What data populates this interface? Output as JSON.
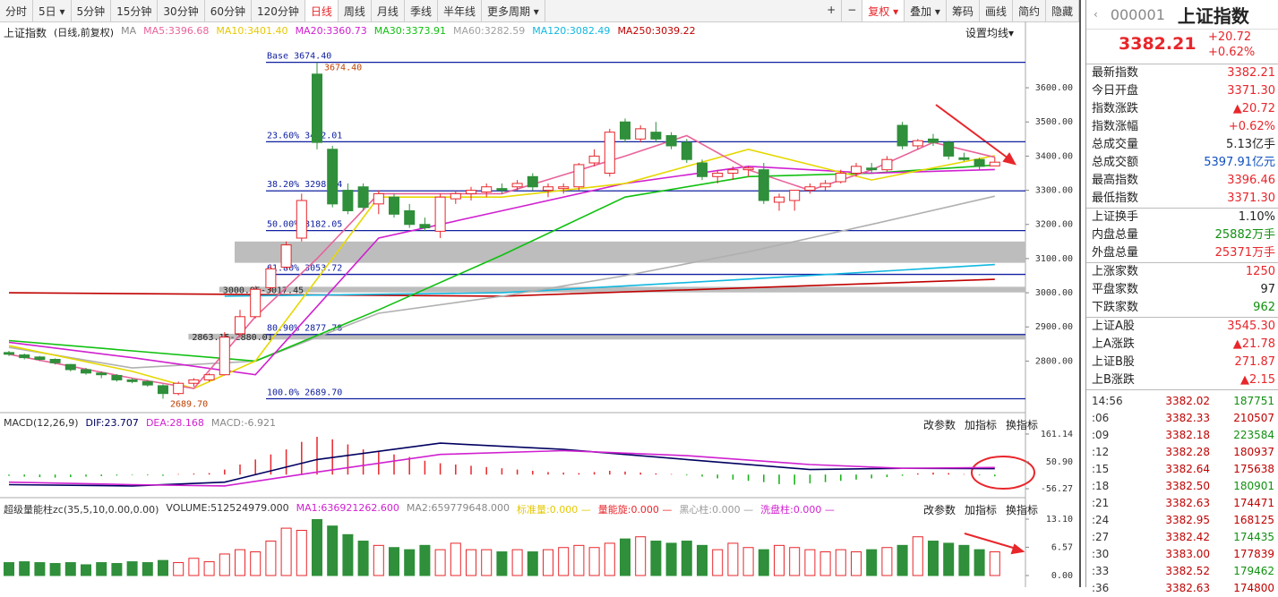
{
  "toolbar": {
    "tabs": [
      "分时",
      "5日 ▾",
      "5分钟",
      "15分钟",
      "30分钟",
      "60分钟",
      "120分钟",
      "日线",
      "周线",
      "月线",
      "季线",
      "半年线",
      "更多周期 ▾"
    ],
    "active": 7,
    "tools": [
      "+",
      "−",
      "复权 ▾",
      "叠加 ▾",
      "筹码",
      "画线",
      "简约",
      "隐藏"
    ],
    "active_tool": 2
  },
  "chart_data": [
    {
      "type": "candlestick",
      "title": "上证指数",
      "subtitle": "(日线,前复权)",
      "ma_label": "MA",
      "settings_label": "设置均线▾",
      "legend": [
        {
          "text": "MA5:3396.68",
          "color": "#e8639a"
        },
        {
          "text": "MA10:3401.40",
          "color": "#e6c800"
        },
        {
          "text": "MA20:3360.73",
          "color": "#d020d0"
        },
        {
          "text": "MA30:3373.91",
          "color": "#10c010"
        },
        {
          "text": "MA60:3282.59",
          "color": "#a0a0a0"
        },
        {
          "text": "MA120:3082.49",
          "color": "#10b8e0"
        },
        {
          "text": "MA250:3039.22",
          "color": "#c00000"
        }
      ],
      "open": [
        2825,
        2818,
        2812,
        2805,
        2790,
        2775,
        2765,
        2758,
        2745,
        2740,
        2728,
        2705,
        2735,
        2745,
        2760,
        2880,
        2930,
        3015,
        3075,
        3160,
        3640,
        3420,
        3300,
        3310,
        3260,
        3280,
        3240,
        3200,
        3180,
        3275,
        3290,
        3295,
        3305,
        3310,
        3340,
        3300,
        3305,
        3310,
        3380,
        3350,
        3500,
        3450,
        3470,
        3460,
        3440,
        3380,
        3340,
        3350,
        3360,
        3360,
        3265,
        3270,
        3300,
        3310,
        3325,
        3350,
        3365,
        3360,
        3490,
        3430,
        3450,
        3440,
        3395,
        3390,
        3371.3
      ],
      "high": [
        2830,
        2822,
        2815,
        2808,
        2792,
        2780,
        2770,
        2762,
        2750,
        2745,
        2732,
        2740,
        2750,
        2765,
        2885,
        2950,
        3020,
        3080,
        3150,
        3290,
        3674.4,
        3430,
        3320,
        3320,
        3300,
        3290,
        3260,
        3220,
        3290,
        3300,
        3310,
        3320,
        3320,
        3330,
        3350,
        3320,
        3320,
        3380,
        3420,
        3480,
        3510,
        3490,
        3500,
        3470,
        3450,
        3390,
        3360,
        3370,
        3370,
        3380,
        3290,
        3300,
        3320,
        3330,
        3360,
        3380,
        3380,
        3400,
        3500,
        3450,
        3465,
        3445,
        3410,
        3395,
        3396.46
      ],
      "low": [
        2815,
        2805,
        2800,
        2790,
        2770,
        2760,
        2750,
        2740,
        2735,
        2725,
        2689.7,
        2700,
        2725,
        2740,
        2758,
        2870,
        2925,
        3005,
        3070,
        3150,
        3420,
        3250,
        3230,
        3240,
        3230,
        3220,
        3190,
        3180,
        3160,
        3260,
        3270,
        3280,
        3290,
        3300,
        3300,
        3280,
        3290,
        3300,
        3370,
        3340,
        3440,
        3440,
        3440,
        3420,
        3380,
        3330,
        3320,
        3330,
        3340,
        3260,
        3240,
        3240,
        3290,
        3300,
        3320,
        3340,
        3350,
        3355,
        3420,
        3420,
        3430,
        3390,
        3385,
        3360,
        3371.3
      ],
      "close": [
        2820,
        2810,
        2805,
        2795,
        2775,
        2765,
        2760,
        2745,
        2740,
        2730,
        2705,
        2735,
        2745,
        2760,
        2870,
        2930,
        3010,
        3070,
        3140,
        3270,
        3440,
        3260,
        3240,
        3250,
        3290,
        3230,
        3200,
        3190,
        3280,
        3290,
        3300,
        3310,
        3300,
        3320,
        3310,
        3310,
        3310,
        3375,
        3400,
        3470,
        3450,
        3480,
        3450,
        3430,
        3390,
        3340,
        3350,
        3360,
        3365,
        3270,
        3280,
        3300,
        3310,
        3320,
        3350,
        3370,
        3360,
        3390,
        3430,
        3445,
        3440,
        3400,
        3390,
        3370,
        3382.21
      ],
      "up_color": "#e8262b",
      "down_color": "#2f8f3a",
      "ylim": [
        2657,
        3739
      ],
      "yticks": [
        {
          "value": 3600,
          "label": "3600.00"
        },
        {
          "value": 3500,
          "label": "3500.00"
        },
        {
          "value": 3400,
          "label": "3400.00"
        },
        {
          "value": 3300,
          "label": "3300.00"
        },
        {
          "value": 3200,
          "label": "3200.00"
        },
        {
          "value": 3100,
          "label": "3100.00"
        },
        {
          "value": 3000,
          "label": "3000.00"
        },
        {
          "value": 2900,
          "label": "2900.00"
        },
        {
          "value": 2800,
          "label": "2800.00"
        }
      ],
      "lines": [
        {
          "name": "MA250",
          "color": "#c00000",
          "x": [
            0,
            32,
            64
          ],
          "values": [
            3000,
            2990,
            3039.22
          ]
        },
        {
          "name": "MA120",
          "color": "#10b8e0",
          "x": [
            14,
            32,
            48,
            64
          ],
          "values": [
            2990,
            3000,
            3040,
            3082.49
          ]
        },
        {
          "name": "MA60",
          "color": "#b0b0b0",
          "x": [
            0,
            8,
            16,
            24,
            32,
            40,
            48,
            56,
            64
          ],
          "values": [
            2840,
            2780,
            2800,
            2940,
            2990,
            3050,
            3120,
            3200,
            3282.59
          ]
        },
        {
          "name": "MA30",
          "color": "#10c010",
          "x": [
            0,
            8,
            16,
            24,
            32,
            40,
            48,
            56,
            64
          ],
          "values": [
            2860,
            2830,
            2800,
            2950,
            3110,
            3280,
            3340,
            3350,
            3373.91
          ]
        },
        {
          "name": "MA20",
          "color": "#d020d0",
          "x": [
            0,
            8,
            16,
            24,
            32,
            40,
            48,
            56,
            64
          ],
          "values": [
            2855,
            2810,
            2760,
            3160,
            3240,
            3320,
            3370,
            3350,
            3360.73
          ]
        },
        {
          "name": "MA10",
          "color": "#e6d800",
          "x": [
            0,
            8,
            12,
            16,
            24,
            32,
            40,
            48,
            56,
            64
          ],
          "values": [
            2845,
            2770,
            2720,
            2800,
            3280,
            3280,
            3320,
            3420,
            3330,
            3401.4
          ]
        },
        {
          "name": "MA5",
          "color": "#e8639a",
          "x": [
            0,
            8,
            12,
            16,
            20,
            24,
            32,
            40,
            44,
            48,
            52,
            56,
            60,
            64
          ],
          "values": [
            2820,
            2750,
            2720,
            2930,
            3100,
            3290,
            3290,
            3400,
            3460,
            3360,
            3300,
            3360,
            3440,
            3396.68
          ]
        }
      ],
      "levels": [
        {
          "label": "Base  3674.40",
          "value": 3674.4
        },
        {
          "label": "23.60% 3442.01",
          "value": 3442.01
        },
        {
          "label": "38.20% 3298.24",
          "value": 3298.24
        },
        {
          "label": "50.00% 3182.05",
          "value": 3182.05
        },
        {
          "label": "61.80% 3053.72",
          "value": 3053.72
        },
        {
          "label": "80.90% 2877.78",
          "value": 2877.78
        },
        {
          "label": "100.0% 2689.70",
          "value": 2689.7
        }
      ],
      "zones": [
        {
          "x": 15,
          "range": [
            3087.63,
            3150
          ]
        },
        {
          "x": 14,
          "label": "3000.95-3017.45",
          "range": [
            3000.95,
            3017.45
          ]
        },
        {
          "x": 12,
          "label": "2863.15-2880.01",
          "range": [
            2863.15,
            2880.01
          ]
        }
      ],
      "extremes": [
        {
          "x": 20,
          "text": "3674.40",
          "value": 3674.4
        },
        {
          "x": 10,
          "text": "2689.70",
          "value": 2689.7
        }
      ]
    },
    {
      "type": "macd",
      "legend": [
        {
          "text": "MACD(12,26,9)",
          "color": "#333"
        },
        {
          "text": "DIF:23.707",
          "color": "#000060"
        },
        {
          "text": "DEA:28.168",
          "color": "#d020d0"
        },
        {
          "text": "MACD:-6.921",
          "color": "#888"
        }
      ],
      "buttons": [
        "改参数",
        "加指标",
        "换指标"
      ],
      "values": [
        -5,
        -8,
        -10,
        -12,
        -10,
        -8,
        -6,
        -4,
        -2,
        -3,
        -5,
        2,
        4,
        6,
        20,
        40,
        60,
        80,
        100,
        130,
        150,
        140,
        120,
        100,
        90,
        80,
        70,
        55,
        45,
        40,
        35,
        30,
        25,
        20,
        15,
        10,
        8,
        6,
        10,
        15,
        12,
        8,
        5,
        2,
        -3,
        -8,
        -15,
        -20,
        -25,
        -30,
        -38,
        -40,
        -35,
        -30,
        -25,
        -20,
        -15,
        -10,
        -5,
        5,
        8,
        6,
        2,
        -3,
        -6.921
      ],
      "up_color": "#e8262b",
      "down_color": "#10b010",
      "lines": [
        {
          "name": "DIF",
          "color": "#000060",
          "x": [
            0,
            8,
            14,
            20,
            28,
            36,
            44,
            52,
            58,
            64
          ],
          "values": [
            -40,
            -45,
            -30,
            60,
            125,
            100,
            60,
            20,
            25,
            23.707
          ]
        },
        {
          "name": "DEA",
          "color": "#d020d0",
          "x": [
            0,
            8,
            14,
            20,
            28,
            36,
            44,
            52,
            58,
            64
          ],
          "values": [
            -30,
            -40,
            -45,
            10,
            80,
            95,
            75,
            40,
            25,
            28.168
          ]
        }
      ],
      "ylim": [
        -81,
        232
      ],
      "yticks": [
        161.14,
        {
          "value": 50.9,
          "label": "50.90"
        },
        -56.27
      ]
    },
    {
      "type": "volume",
      "legend": [
        {
          "text": "超级量能柱zc(35,5,10,0.00,0.00)",
          "color": "#333"
        },
        {
          "text": "VOLUME:512524979.000",
          "color": "#333"
        },
        {
          "text": "MA1:636921262.600",
          "color": "#d020d0"
        },
        {
          "text": "MA2:659779648.000",
          "color": "#888"
        },
        {
          "text": "标准量:0.000 —",
          "color": "#e6c800"
        },
        {
          "text": "量能旋:0.000 —",
          "color": "#e8262b"
        },
        {
          "text": "黑心柱:0.000 —",
          "color": "#999"
        },
        {
          "text": "洗盘柱:0.000 —",
          "color": "#d020d0"
        }
      ],
      "buttons": [
        "改参数",
        "加指标",
        "换指标"
      ],
      "values": [
        3,
        3.2,
        3,
        2.8,
        3,
        2.5,
        3,
        2.8,
        3.2,
        3,
        3.5,
        3,
        4,
        3.2,
        5,
        6,
        5.5,
        8,
        11,
        10.5,
        13,
        11.5,
        9.5,
        8,
        7,
        6.5,
        6,
        7,
        6,
        7.5,
        6,
        6,
        5.5,
        6,
        5.5,
        6,
        6.5,
        7,
        6.5,
        7.5,
        8.5,
        9,
        8,
        7.5,
        8,
        7,
        6,
        7.5,
        6.5,
        6,
        7,
        6.5,
        6,
        5.5,
        6,
        5.5,
        6,
        6.5,
        7,
        9,
        8,
        7.5,
        7,
        6,
        5.5
      ],
      "ylim": [
        -2.08,
        16.22
      ],
      "yticks": [
        {
          "value": 13.1,
          "label": "13.10"
        },
        6.57,
        {
          "value": 0,
          "label": "0.00"
        }
      ]
    }
  ],
  "quote": {
    "code": "000001",
    "name": "上证指数",
    "price": "3382.21",
    "change": "+20.72",
    "pct": "+0.62%",
    "groups": [
      [
        {
          "label": "最新指数",
          "value": "3382.21",
          "color": "#e8262b"
        },
        {
          "label": "今日开盘",
          "value": "3371.30",
          "color": "#e8262b"
        },
        {
          "label": "指数涨跌",
          "value": "▲20.72",
          "color": "#e8262b"
        },
        {
          "label": "指数涨幅",
          "value": "+0.62%",
          "color": "#e8262b"
        },
        {
          "label": "总成交量",
          "value": "5.13亿手",
          "color": "#222"
        },
        {
          "label": "总成交额",
          "value": "5397.91亿元",
          "color": "#1050c0"
        },
        {
          "label": "最高指数",
          "value": "3396.46",
          "color": "#e8262b"
        },
        {
          "label": "最低指数",
          "value": "3371.30",
          "color": "#e8262b"
        }
      ],
      [
        {
          "label": "上证换手",
          "value": "1.10%",
          "color": "#222"
        },
        {
          "label": "内盘总量",
          "value": "25882万手",
          "color": "#109010"
        },
        {
          "label": "外盘总量",
          "value": "25371万手",
          "color": "#e8262b"
        }
      ],
      [
        {
          "label": "上涨家数",
          "value": "1250",
          "color": "#e8262b"
        },
        {
          "label": "平盘家数",
          "value": "97",
          "color": "#222"
        },
        {
          "label": "下跌家数",
          "value": "962",
          "color": "#109010"
        }
      ],
      [
        {
          "label": "上证A股",
          "value": "3545.30",
          "color": "#e8262b"
        },
        {
          "label": "上A涨跌",
          "value": "▲21.78",
          "color": "#e8262b"
        },
        {
          "label": "上证B股",
          "value": "271.87",
          "color": "#e8262b"
        },
        {
          "label": "上B涨跌",
          "value": "▲2.15",
          "color": "#e8262b"
        }
      ]
    ],
    "ticks": {
      "times": [
        "14:56",
        ":06",
        ":09",
        ":12",
        ":15",
        ":18",
        ":21",
        ":24",
        ":27",
        ":30",
        ":33",
        ":36"
      ],
      "prices": [
        "3382.02",
        "3382.33",
        "3382.18",
        "3382.28",
        "3382.64",
        "3382.50",
        "3382.63",
        "3382.95",
        "3382.42",
        "3383.00",
        "3382.52",
        "3382.63"
      ],
      "volumes": [
        187751,
        210507,
        223584,
        180937,
        175638,
        180901,
        174471,
        168125,
        174435,
        177839,
        179462,
        174800
      ],
      "volume_colors": [
        "#109010",
        "#c00000",
        "#109010",
        "#c00000",
        "#c00000",
        "#109010",
        "#c00000",
        "#c00000",
        "#109010",
        "#c00000",
        "#109010",
        "#c00000"
      ]
    }
  }
}
